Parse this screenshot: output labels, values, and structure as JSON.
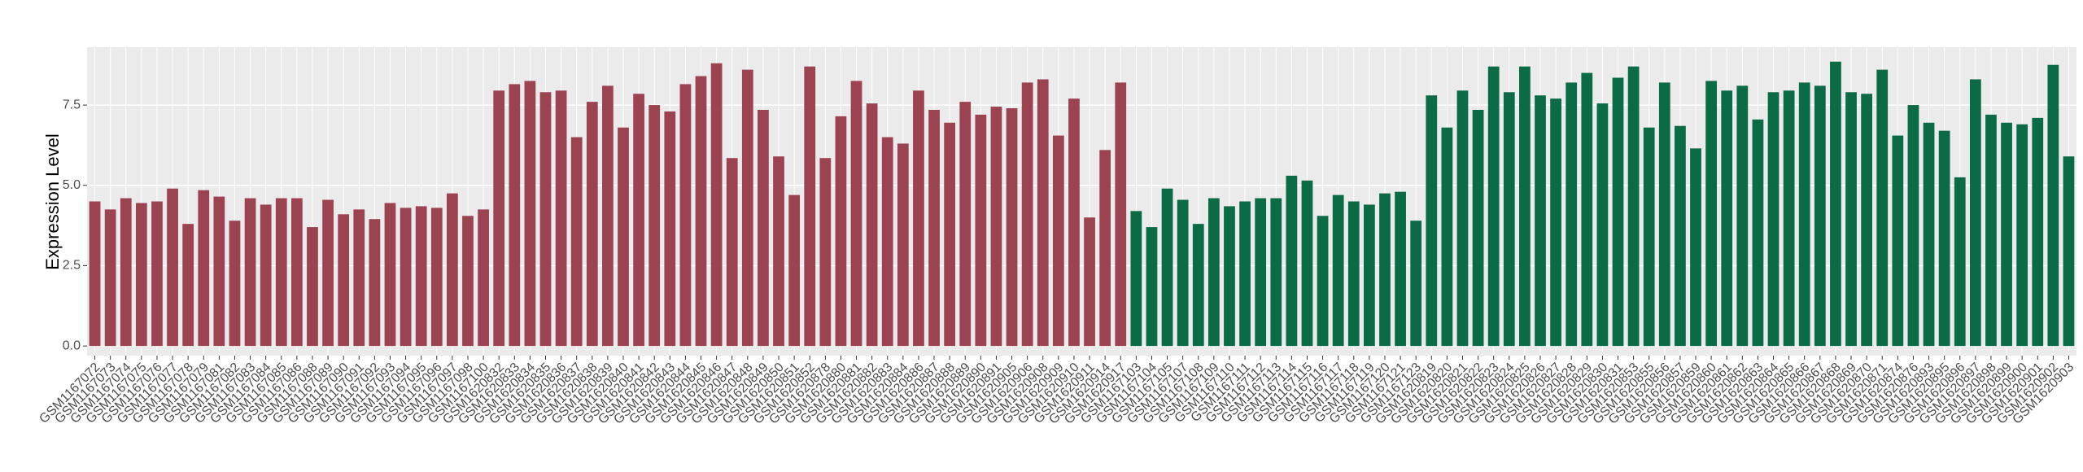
{
  "chart_data": {
    "type": "bar",
    "y_label": "Expression Level",
    "categories": [
      "GSM1167072",
      "GSM1167073",
      "GSM1167074",
      "GSM1167075",
      "GSM1167076",
      "GSM1167077",
      "GSM1167078",
      "GSM1167079",
      "GSM1167081",
      "GSM1167082",
      "GSM1167083",
      "GSM1167084",
      "GSM1167085",
      "GSM1167086",
      "GSM1167088",
      "GSM1167089",
      "GSM1167090",
      "GSM1167091",
      "GSM1167092",
      "GSM1167093",
      "GSM1167094",
      "GSM1167095",
      "GSM1167096",
      "GSM1167097",
      "GSM1167098",
      "GSM1167100",
      "GSM1620832",
      "GSM1620833",
      "GSM1620834",
      "GSM1620835",
      "GSM1620836",
      "GSM1620837",
      "GSM1620838",
      "GSM1620839",
      "GSM1620840",
      "GSM1620841",
      "GSM1620842",
      "GSM1620843",
      "GSM1620844",
      "GSM1620845",
      "GSM1620846",
      "GSM1620847",
      "GSM1620848",
      "GSM1620849",
      "GSM1620850",
      "GSM1620851",
      "GSM1620852",
      "GSM1620878",
      "GSM1620880",
      "GSM1620881",
      "GSM1620882",
      "GSM1620883",
      "GSM1620884",
      "GSM1620886",
      "GSM1620887",
      "GSM1620888",
      "GSM1620889",
      "GSM1620890",
      "GSM1620891",
      "GSM1620905",
      "GSM1620906",
      "GSM1620908",
      "GSM1620909",
      "GSM1620910",
      "GSM1620911",
      "GSM1620914",
      "GSM1620917",
      "GSM1167103",
      "GSM1167104",
      "GSM1167105",
      "GSM1167107",
      "GSM1167108",
      "GSM1167109",
      "GSM1167110",
      "GSM1167111",
      "GSM1167112",
      "GSM1167113",
      "GSM1167114",
      "GSM1167115",
      "GSM1167116",
      "GSM1167117",
      "GSM1167118",
      "GSM1167119",
      "GSM1167120",
      "GSM1167121",
      "GSM1167123",
      "GSM1620819",
      "GSM1620820",
      "GSM1620821",
      "GSM1620822",
      "GSM1620823",
      "GSM1620824",
      "GSM1620825",
      "GSM1620826",
      "GSM1620827",
      "GSM1620828",
      "GSM1620829",
      "GSM1620830",
      "GSM1620831",
      "GSM1620853",
      "GSM1620855",
      "GSM1620856",
      "GSM1620857",
      "GSM1620859",
      "GSM1620860",
      "GSM1620861",
      "GSM1620862",
      "GSM1620863",
      "GSM1620864",
      "GSM1620865",
      "GSM1620866",
      "GSM1620867",
      "GSM1620868",
      "GSM1620869",
      "GSM1620870",
      "GSM1620871",
      "GSM1620874",
      "GSM1620876",
      "GSM1620893",
      "GSM1620895",
      "GSM1620896",
      "GSM1620897",
      "GSM1620898",
      "GSM1620899",
      "GSM1620900",
      "GSM1620901",
      "GSM1620902",
      "GSM1620903"
    ],
    "values": [
      4.5,
      4.25,
      4.6,
      4.45,
      4.5,
      4.9,
      3.8,
      4.85,
      4.65,
      3.9,
      4.6,
      4.4,
      4.6,
      4.6,
      3.7,
      4.55,
      4.1,
      4.25,
      3.95,
      4.45,
      4.3,
      4.35,
      4.3,
      4.75,
      4.05,
      4.25,
      7.95,
      8.15,
      8.25,
      7.9,
      7.95,
      6.5,
      7.6,
      8.1,
      6.8,
      7.85,
      7.5,
      7.3,
      8.15,
      8.4,
      8.8,
      5.85,
      8.6,
      7.35,
      5.9,
      4.7,
      8.7,
      5.85,
      7.15,
      8.25,
      7.55,
      6.5,
      6.3,
      7.95,
      7.35,
      6.95,
      7.6,
      7.2,
      7.45,
      7.4,
      8.2,
      8.3,
      6.55,
      7.7,
      4.0,
      6.1,
      8.2,
      4.2,
      3.7,
      4.9,
      4.55,
      3.8,
      4.6,
      4.35,
      4.5,
      4.6,
      4.6,
      5.3,
      5.15,
      4.05,
      4.7,
      4.5,
      4.4,
      4.75,
      4.8,
      3.9,
      7.8,
      6.8,
      7.95,
      7.35,
      8.7,
      7.9,
      8.7,
      7.8,
      7.7,
      8.2,
      8.5,
      7.55,
      8.35,
      8.7,
      6.8,
      8.2,
      6.85,
      6.15,
      8.25,
      7.95,
      8.1,
      7.05,
      7.9,
      7.95,
      8.2,
      8.1,
      8.85,
      7.9,
      7.85,
      8.6,
      6.55,
      7.5,
      6.95,
      6.7,
      5.25,
      8.3,
      7.2,
      6.95,
      6.9,
      7.1,
      8.75,
      5.9
    ],
    "group_colors": [
      "#9c4352",
      "#0b6b45"
    ],
    "group_sizes": [
      67,
      61
    ],
    "ylim": [
      -0.3,
      9.3
    ],
    "yticks": [
      {
        "value": 0,
        "label": "0.0"
      },
      {
        "value": 2.5,
        "label": "2.5"
      },
      {
        "value": 5,
        "label": "5.0"
      },
      {
        "value": 7.5,
        "label": "7.5"
      }
    ],
    "grid": true
  }
}
